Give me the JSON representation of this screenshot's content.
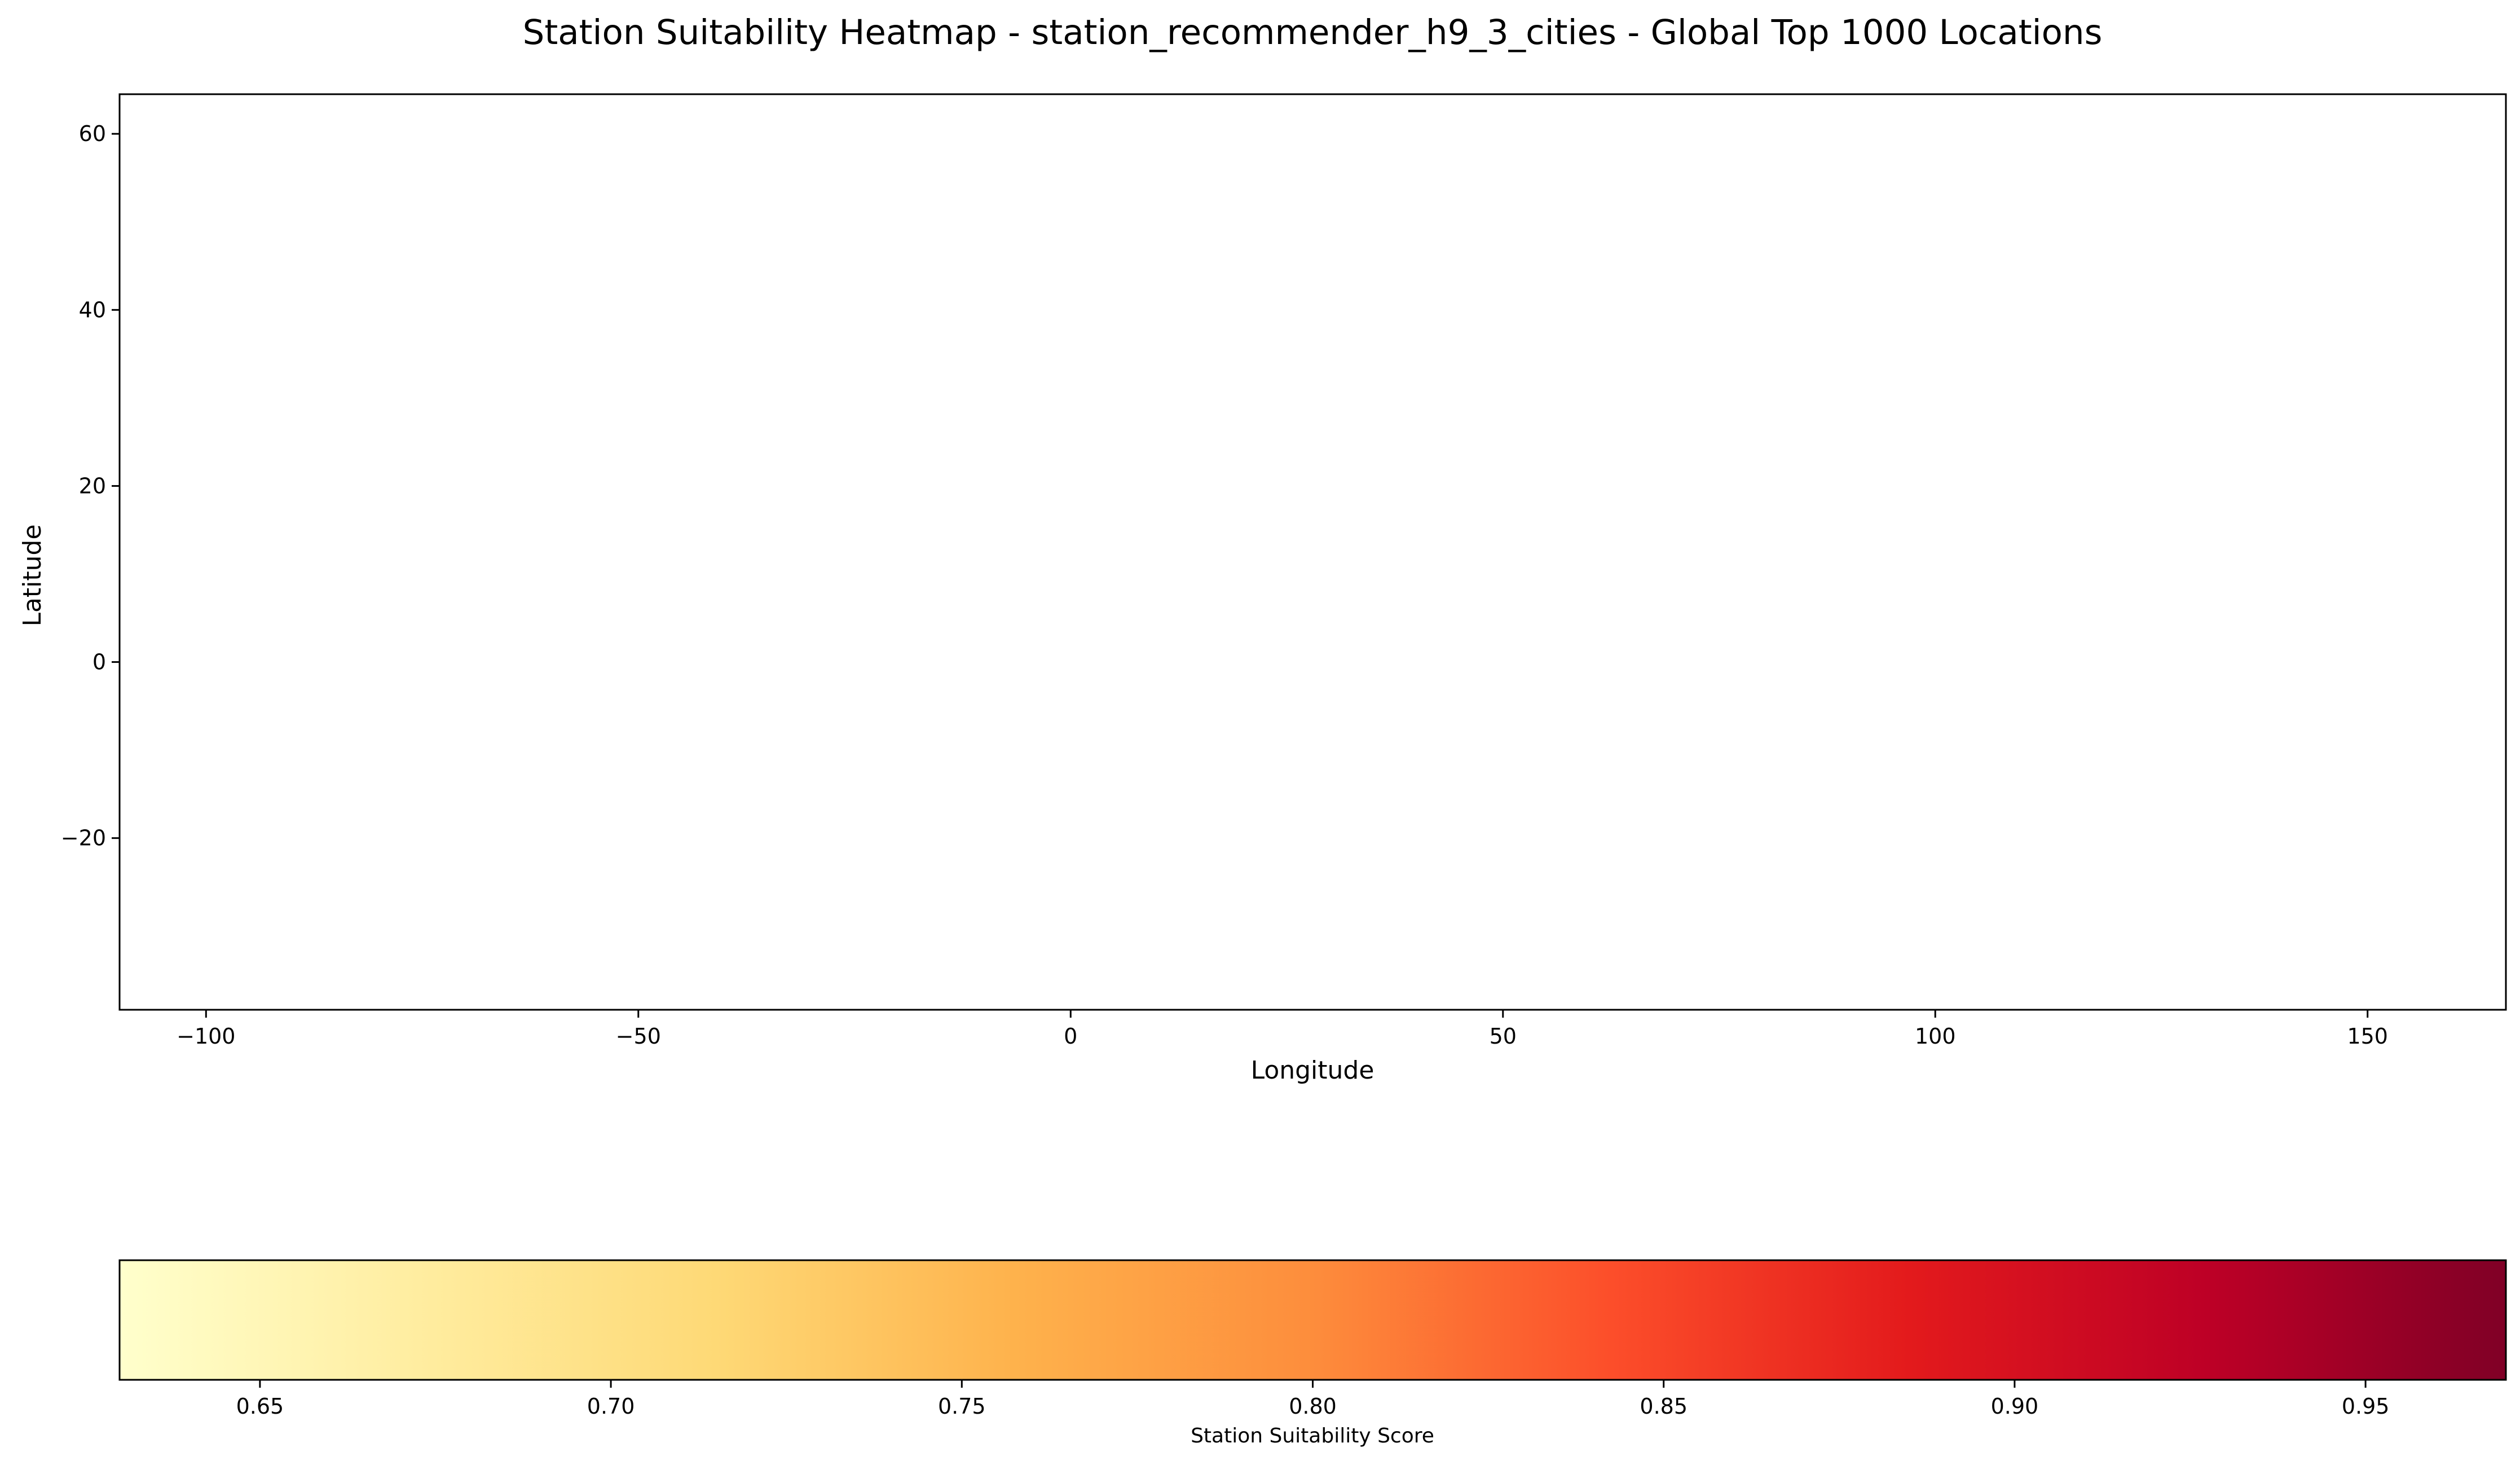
{
  "chart_data": {
    "type": "heatmap",
    "title": "Station Suitability Heatmap - station_recommender_h9_3_cities - Global Top 1000 Locations",
    "xlabel": "Longitude",
    "ylabel": "Latitude",
    "xlim": [
      -110,
      166
    ],
    "ylim": [
      -39.5,
      64.5
    ],
    "x_ticks": [
      -100,
      -50,
      0,
      50,
      100,
      150
    ],
    "x_tick_labels": [
      "−100",
      "−50",
      "0",
      "50",
      "100",
      "150"
    ],
    "y_ticks": [
      -20,
      0,
      20,
      40,
      60
    ],
    "y_tick_labels": [
      "−20",
      "0",
      "20",
      "40",
      "60"
    ],
    "points": [],
    "grid": false,
    "colorbar": {
      "label": "Station Suitability Score",
      "orientation": "horizontal",
      "colormap": "YlOrRd",
      "range": [
        0.63,
        0.97
      ],
      "ticks": [
        0.65,
        0.7,
        0.75,
        0.8,
        0.85,
        0.9,
        0.95
      ],
      "tick_labels": [
        "0.65",
        "0.70",
        "0.75",
        "0.80",
        "0.85",
        "0.90",
        "0.95"
      ],
      "colors": [
        "#ffffcc",
        "#ffeda0",
        "#fed976",
        "#feb24c",
        "#fd8d3c",
        "#fc4e2a",
        "#e31a1c",
        "#bd0026",
        "#800026"
      ]
    }
  }
}
